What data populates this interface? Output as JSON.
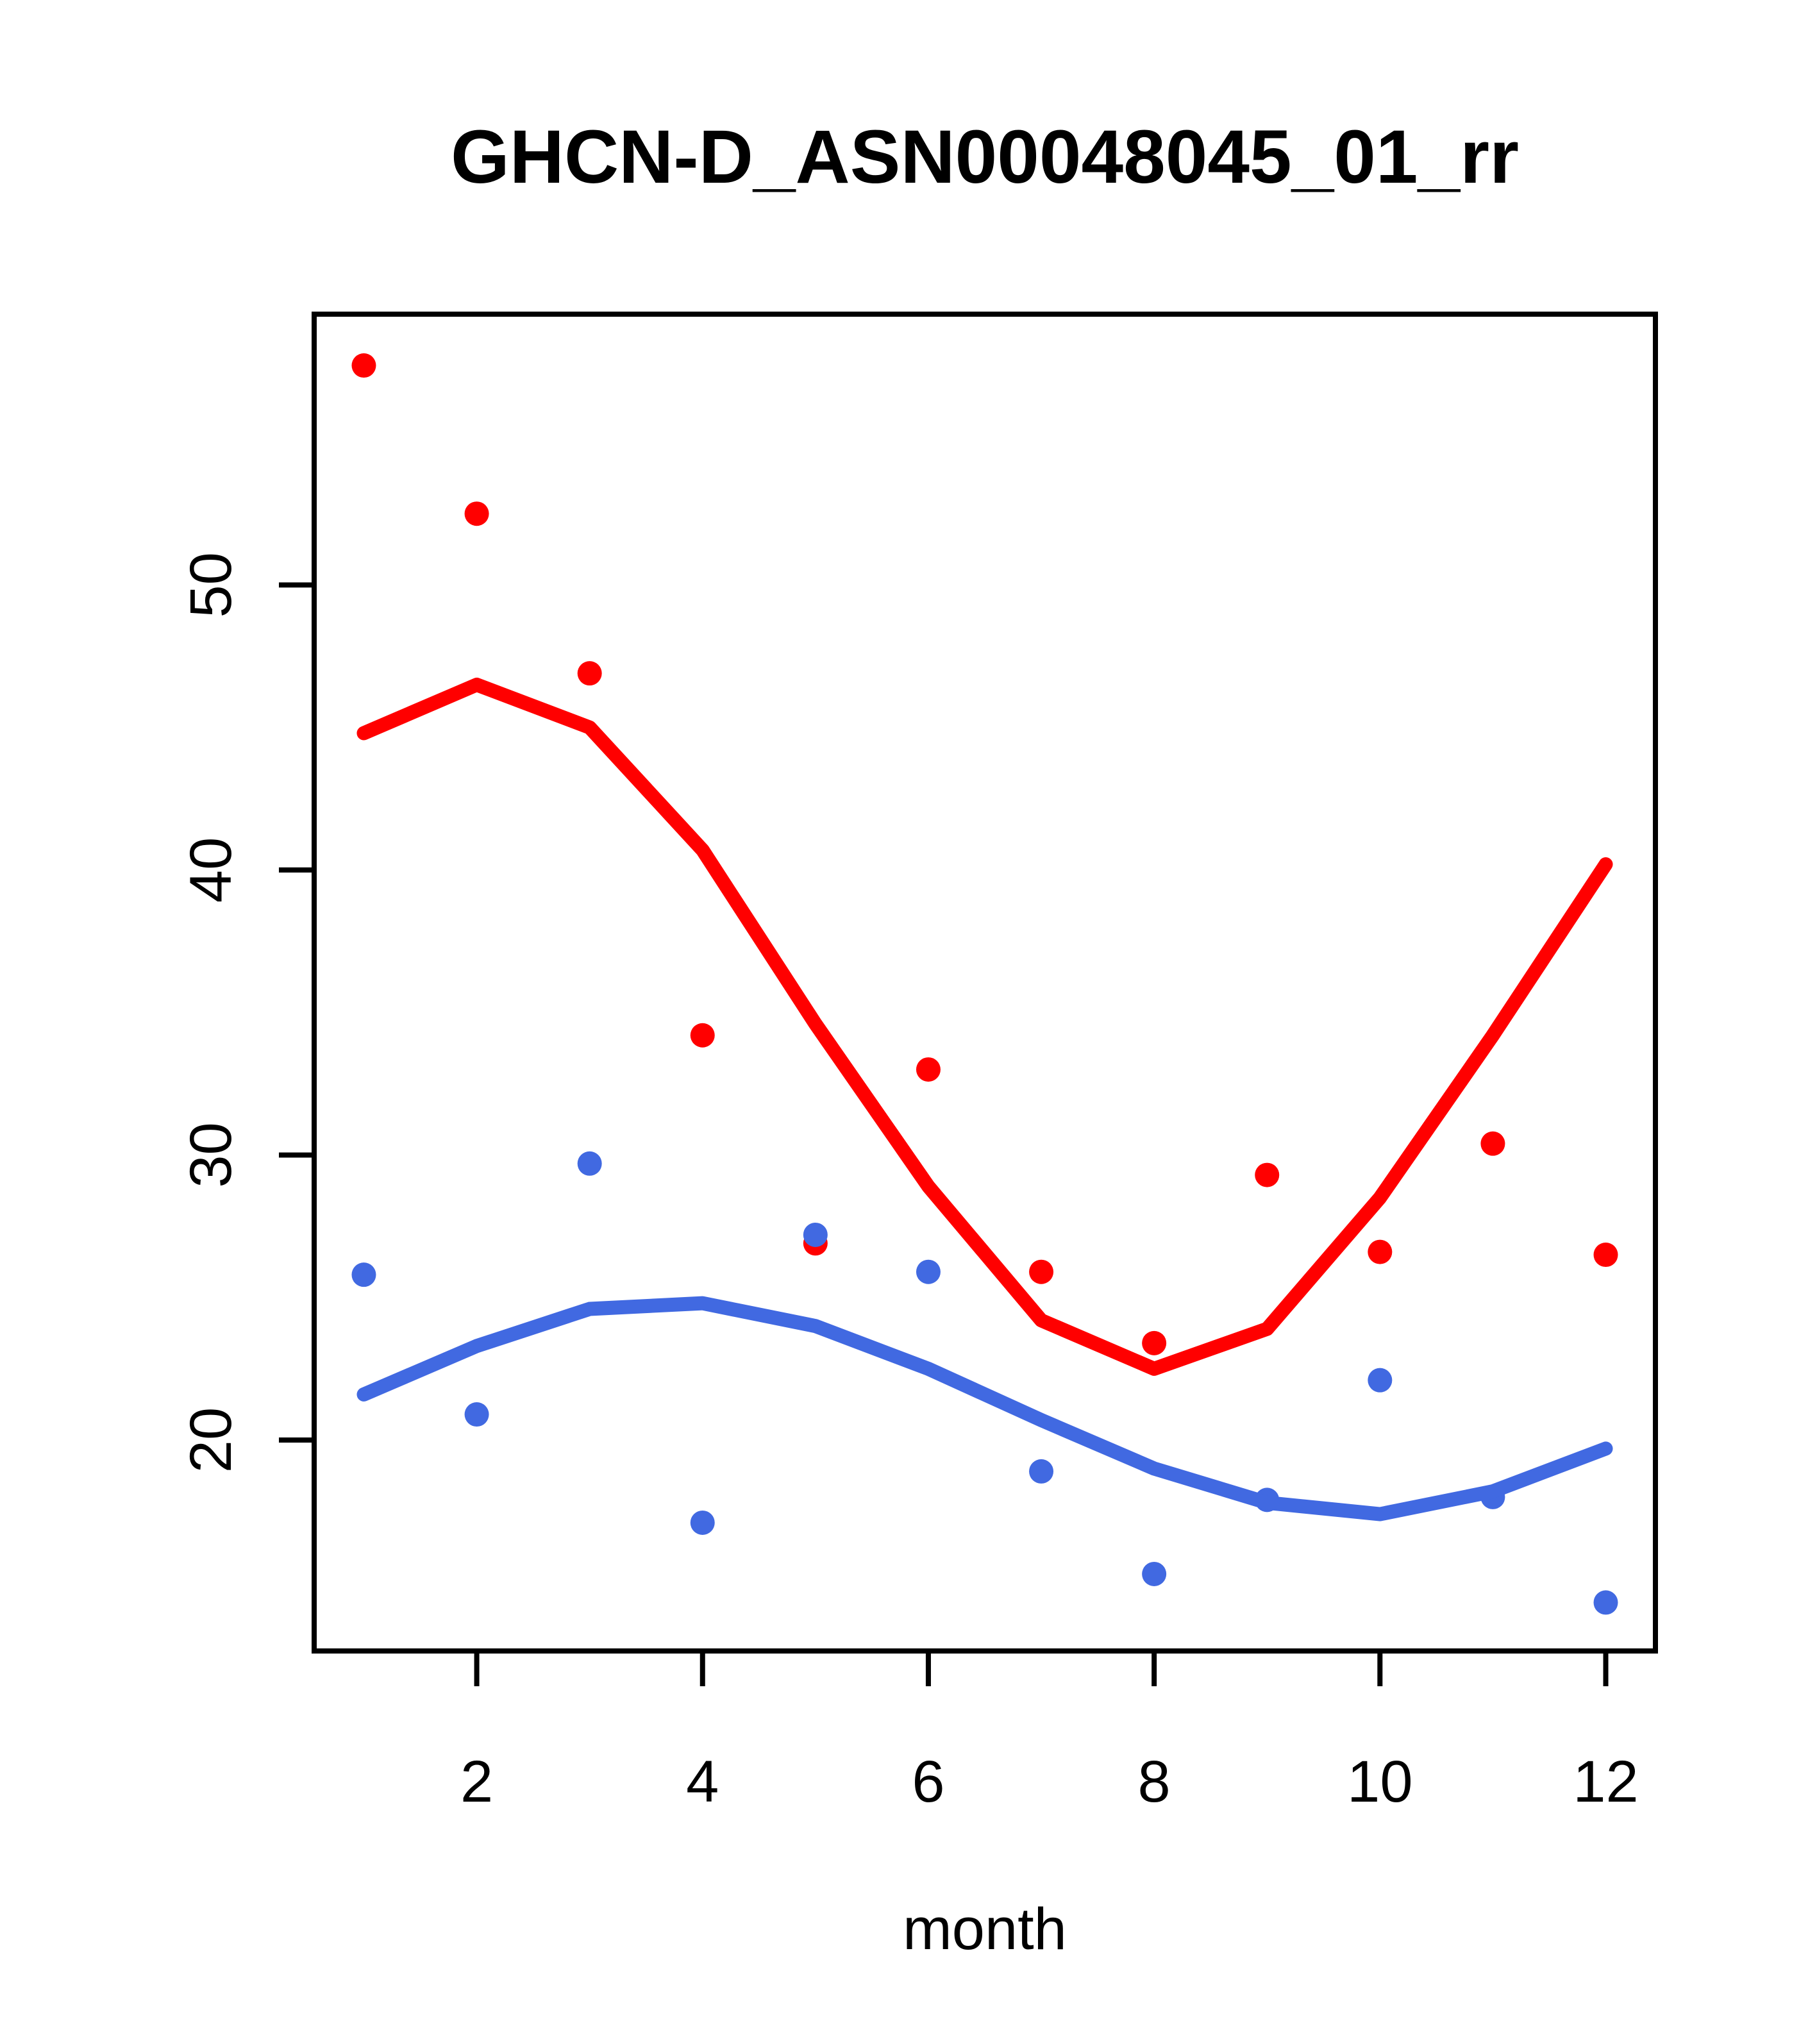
{
  "title": "GHCN-D_ASN00048045_01_rr",
  "xlabel": "month",
  "chart_data": {
    "type": "scatter",
    "title": "GHCN-D_ASN00048045_01_rr",
    "xlabel": "month",
    "ylabel": "",
    "x": [
      1,
      2,
      3,
      4,
      5,
      6,
      7,
      8,
      9,
      10,
      11,
      12
    ],
    "series": [
      {
        "name": "red-points",
        "kind": "points",
        "color": "#ff0000",
        "values": [
          57.7,
          52.5,
          46.9,
          34.2,
          26.9,
          33.0,
          25.9,
          23.4,
          29.3,
          26.6,
          30.4,
          26.5
        ]
      },
      {
        "name": "red-trend-line",
        "kind": "line",
        "color": "#ff0000",
        "values": [
          44.8,
          46.5,
          45.0,
          40.7,
          34.6,
          28.9,
          24.2,
          22.5,
          23.9,
          28.5,
          34.2,
          40.2
        ]
      },
      {
        "name": "blue-points",
        "kind": "points",
        "color": "#4169e1",
        "values": [
          25.8,
          20.9,
          29.7,
          17.1,
          27.2,
          25.9,
          18.9,
          15.3,
          17.9,
          22.1,
          18.0,
          14.3
        ]
      },
      {
        "name": "blue-trend-line",
        "kind": "line",
        "color": "#4169e1",
        "values": [
          21.6,
          23.3,
          24.6,
          24.8,
          24.0,
          22.5,
          20.7,
          19.0,
          17.8,
          17.4,
          18.2,
          19.7
        ]
      }
    ],
    "xticks": [
      "2",
      "4",
      "6",
      "8",
      "10",
      "12"
    ],
    "xtick_values": [
      2,
      4,
      6,
      8,
      10,
      12
    ],
    "yticks": [
      "20",
      "30",
      "40",
      "50"
    ],
    "ytick_values": [
      20,
      30,
      40,
      50
    ],
    "xlim": [
      0.56,
      12.44
    ],
    "ylim": [
      12.6,
      59.5
    ],
    "grid": false,
    "legend": false,
    "axis_color": "#000000",
    "background_color": "#ffffff"
  }
}
